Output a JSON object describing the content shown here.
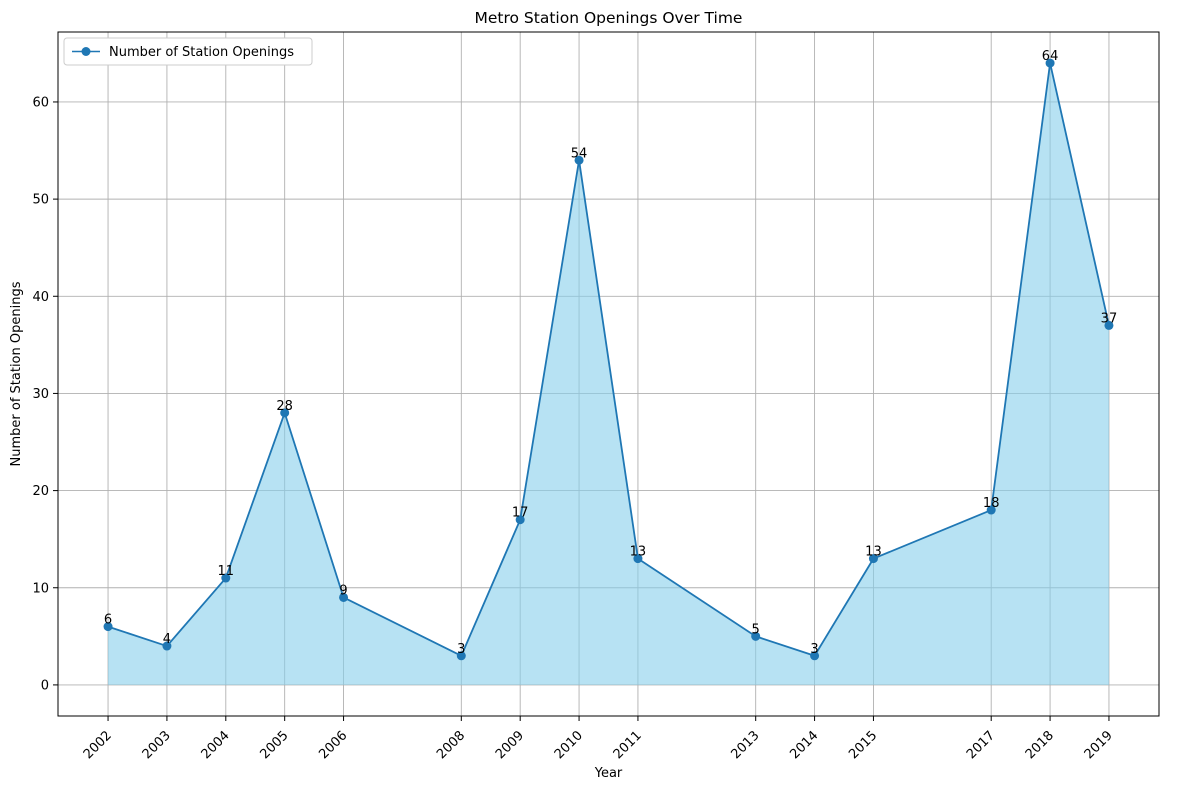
{
  "chart_data": {
    "type": "line",
    "title": "Metro Station Openings Over Time",
    "xlabel": "Year",
    "ylabel": "Number of Station Openings",
    "x": [
      2002,
      2003,
      2004,
      2005,
      2006,
      2008,
      2009,
      2010,
      2011,
      2013,
      2014,
      2015,
      2017,
      2018,
      2019
    ],
    "x_tick_labels": [
      "2002",
      "2003",
      "2004",
      "2005",
      "2006",
      "2008",
      "2009",
      "2010",
      "2011",
      "2013",
      "2014",
      "2015",
      "2017",
      "2018",
      "2019"
    ],
    "series": [
      {
        "name": "Number of Station Openings",
        "values": [
          6,
          4,
          11,
          28,
          9,
          3,
          17,
          54,
          13,
          5,
          3,
          13,
          18,
          64,
          37
        ],
        "color": "#1f77b4",
        "fill_color": "#87ceeb",
        "marker": "circle"
      }
    ],
    "y_ticks": [
      0,
      10,
      20,
      30,
      40,
      50,
      60
    ],
    "xlim": [
      2001.15,
      2019.85
    ],
    "ylim": [
      -3.2,
      67.2
    ],
    "x_tick_rotation": 45,
    "grid": true,
    "grid_color": "#b0b0b0",
    "legend_position": "upper left",
    "data_labels": true
  }
}
